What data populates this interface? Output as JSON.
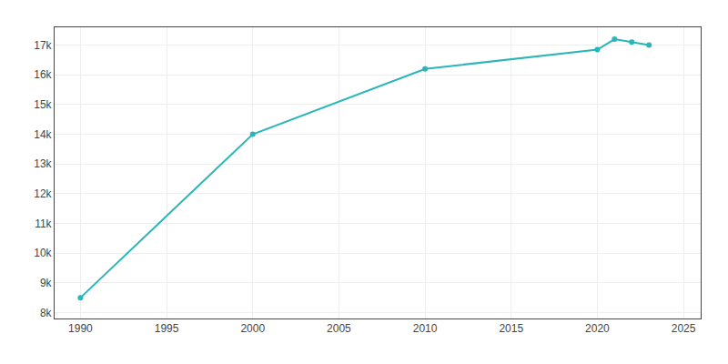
{
  "chart_data": {
    "type": "line",
    "x": [
      1990,
      2000,
      2010,
      2020,
      2021,
      2022,
      2023
    ],
    "values": [
      8500,
      14000,
      16200,
      16850,
      17200,
      17100,
      17000
    ],
    "color": "#2ab5b8",
    "marker": "circle",
    "xlim": [
      1988.5,
      2026
    ],
    "xticks": [
      1990,
      1995,
      2000,
      2005,
      2010,
      2015,
      2020,
      2025
    ],
    "ylim": [
      7800,
      17600
    ],
    "yticks": [
      {
        "value": 8000,
        "label": "8k"
      },
      {
        "value": 9000,
        "label": "9k"
      },
      {
        "value": 10000,
        "label": "10k"
      },
      {
        "value": 11000,
        "label": "11k"
      },
      {
        "value": 12000,
        "label": "12k"
      },
      {
        "value": 13000,
        "label": "13k"
      },
      {
        "value": 14000,
        "label": "14k"
      },
      {
        "value": 15000,
        "label": "15k"
      },
      {
        "value": 16000,
        "label": "16k"
      },
      {
        "value": 17000,
        "label": "17k"
      }
    ],
    "grid": true
  }
}
